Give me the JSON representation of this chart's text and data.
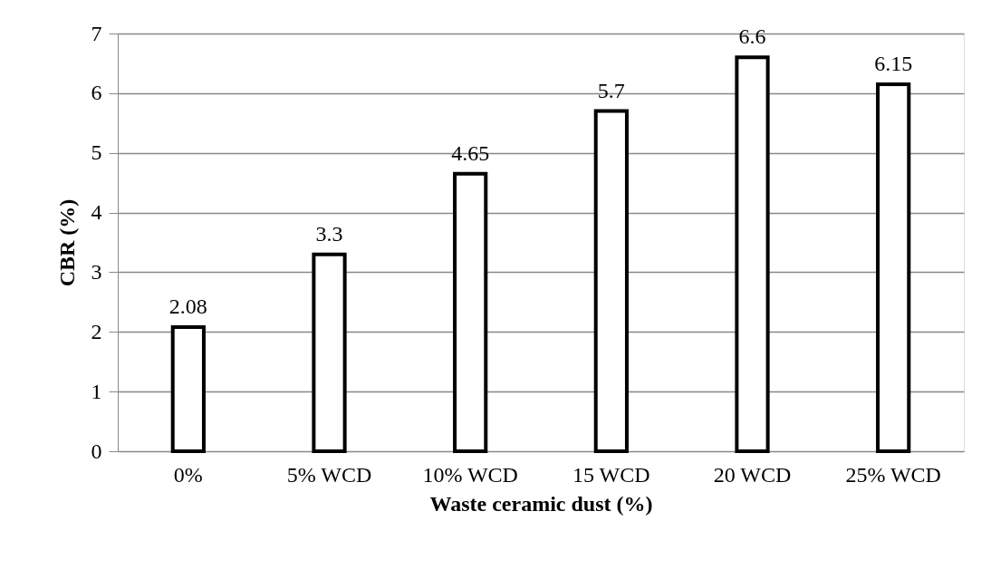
{
  "chart_data": {
    "type": "bar",
    "xlabel": "Waste ceramic dust (%)",
    "ylabel": "CBR (%)",
    "categories": [
      "0%",
      "5% WCD",
      "10% WCD",
      "15 WCD",
      "20 WCD",
      "25% WCD"
    ],
    "values": [
      2.08,
      3.3,
      4.65,
      5.7,
      6.6,
      6.15
    ],
    "color": "#ffffff",
    "ylim": [
      0,
      7
    ],
    "yticks": [
      0,
      1,
      2,
      3,
      4,
      5,
      6,
      7
    ],
    "grid": "y",
    "data_labels": true
  }
}
